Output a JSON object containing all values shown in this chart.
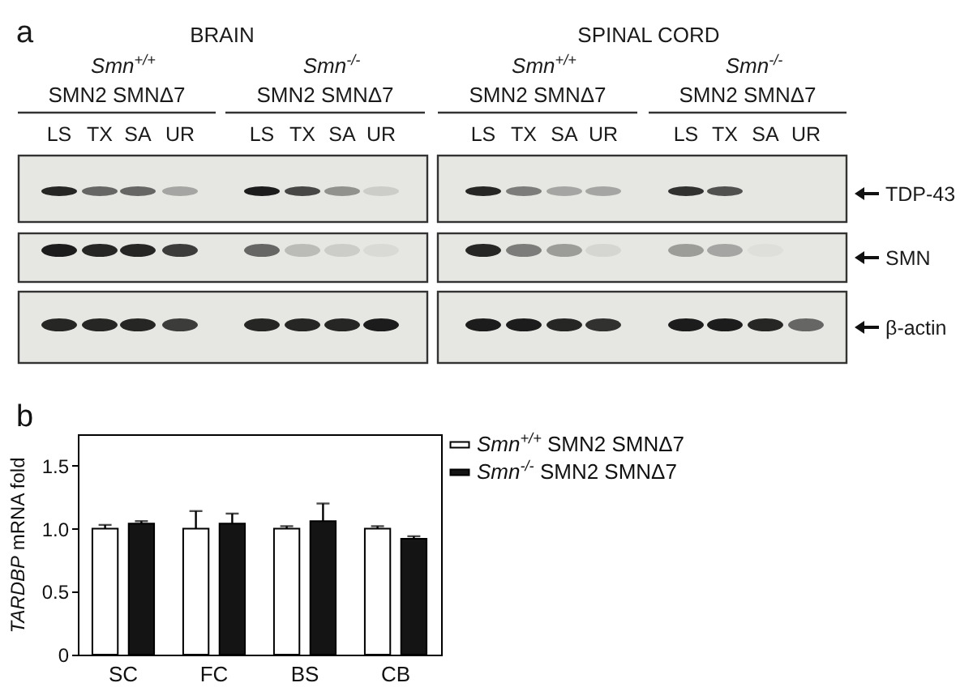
{
  "chart_data": [
    {
      "type": "other",
      "title": "a",
      "annotations": [
        "BRAIN",
        "SPINAL CORD",
        "Smn$^{+/+}$",
        "SMN2 SMNΔ7",
        "Smn$^{-/-}$",
        "SMN2 SMNΔ7",
        "Smn$^{+/+}$",
        "SMN2 SMNΔ7",
        "Smn$^{-/-}$",
        "SMN2 SMNΔ7",
        "LS",
        "TX",
        "SA",
        "UR",
        "LS",
        "TX",
        "SA",
        "UR",
        "LS",
        "TX",
        "SA",
        "UR",
        "LS",
        "TX",
        "SA",
        "UR",
        "TDP-43",
        "SMN",
        "β-actin"
      ]
    },
    {
      "type": "bar",
      "title": "b",
      "categories": [
        "SC",
        "FC",
        "BS",
        "CB"
      ],
      "series": [
        {
          "name": "Smn$^{+/+}$ SMN2 SMNΔ7",
          "color": "#ffffff",
          "values": [
            1.0,
            1.0,
            1.0,
            1.0
          ],
          "errors": [
            0.03,
            0.14,
            0.02,
            0.02
          ]
        },
        {
          "name": "Smn$^{-/-}$ SMN2 SMNΔ7",
          "color": "#141414",
          "values": [
            1.04,
            1.04,
            1.06,
            0.92
          ],
          "errors": [
            0.02,
            0.08,
            0.14,
            0.02
          ]
        }
      ],
      "ylabel": "TARDBP mRNA fold",
      "ylim": [
        0,
        1.75
      ],
      "yticks": [
        0,
        0.5,
        {
          "value": 1,
          "label": "1.0"
        },
        1.5
      ],
      "legend": "right",
      "grid": false
    }
  ]
}
